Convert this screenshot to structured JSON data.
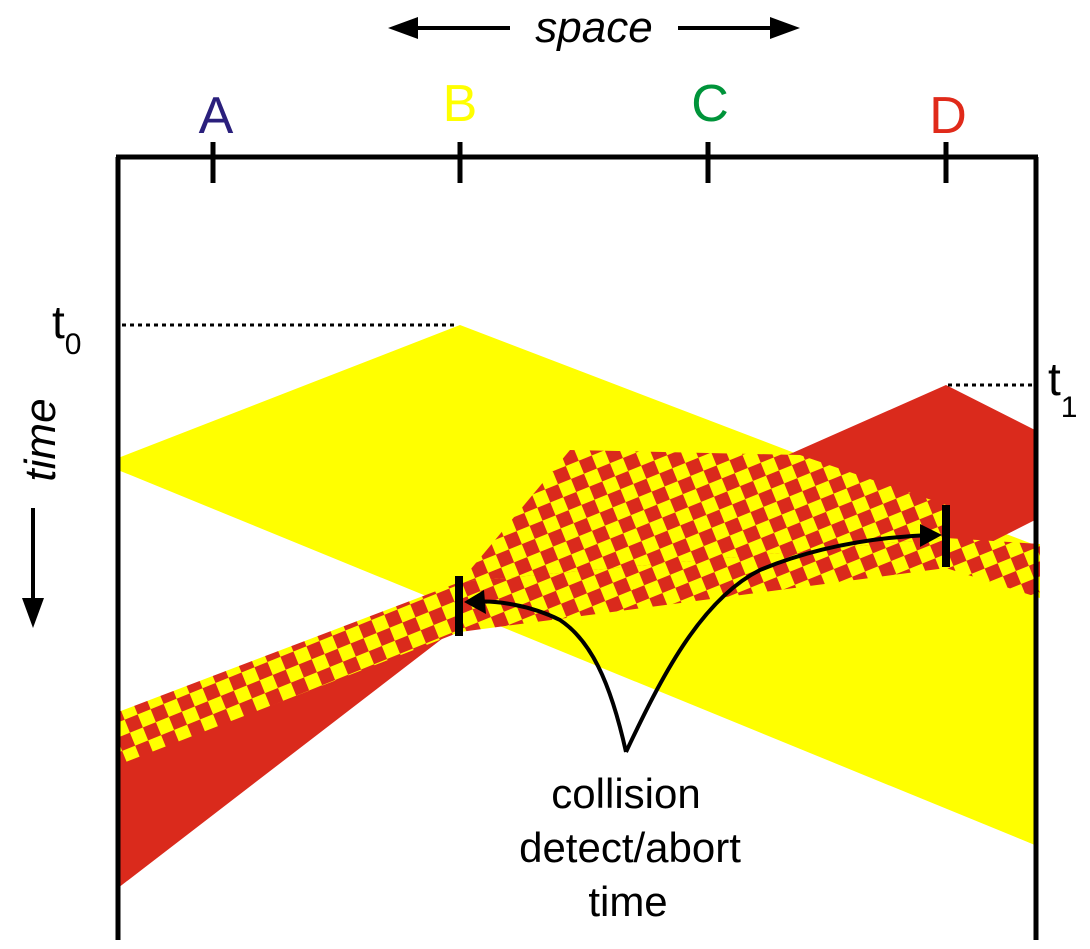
{
  "axis": {
    "space_label": "space",
    "time_label": "time"
  },
  "stations": [
    {
      "label": "A",
      "color": "#2a1f7c"
    },
    {
      "label": "B",
      "color": "#ffff00"
    },
    {
      "label": "C",
      "color": "#00943a"
    },
    {
      "label": "D",
      "color": "#e02a1a"
    }
  ],
  "time_markers": {
    "t0": {
      "base": "t",
      "sub": "0"
    },
    "t1": {
      "base": "t",
      "sub": "1"
    }
  },
  "annotation": {
    "lines": [
      "collision",
      "detect/abort",
      "time"
    ]
  },
  "colors": {
    "yellow": "#ffff00",
    "red": "#da2a1c",
    "line": "#000000"
  }
}
